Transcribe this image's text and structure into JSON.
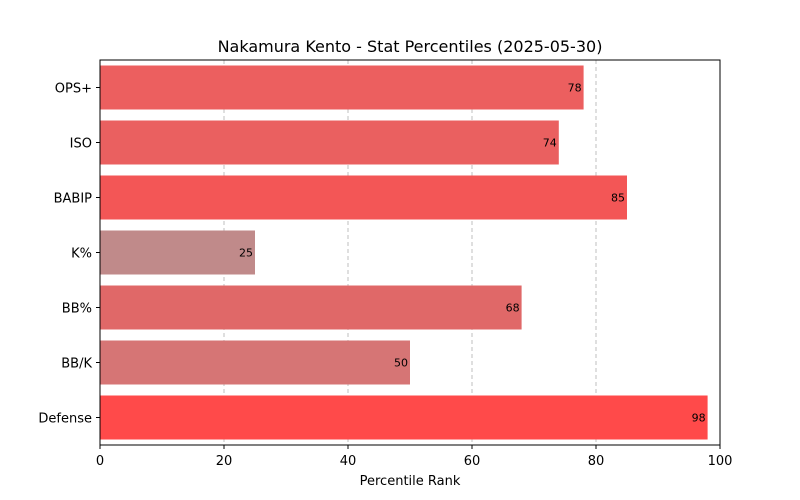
{
  "chart_data": {
    "type": "bar",
    "orientation": "horizontal",
    "title": "Nakamura Kento - Stat Percentiles (2025-05-30)",
    "xlabel": "Percentile Rank",
    "ylabel": "",
    "xlim": [
      0,
      100
    ],
    "xticks": [
      0,
      20,
      40,
      60,
      80,
      100
    ],
    "grid": "x-dashed",
    "categories": [
      "OPS+",
      "ISO",
      "BABIP",
      "K%",
      "BB%",
      "BB/K",
      "Defense"
    ],
    "values": [
      78,
      74,
      85,
      25,
      68,
      50,
      98
    ],
    "colors": [
      "#ec5f5f",
      "#ea6060",
      "#f35656",
      "#c08a8a",
      "#e06868",
      "#d67575",
      "#ff4a4a"
    ]
  }
}
